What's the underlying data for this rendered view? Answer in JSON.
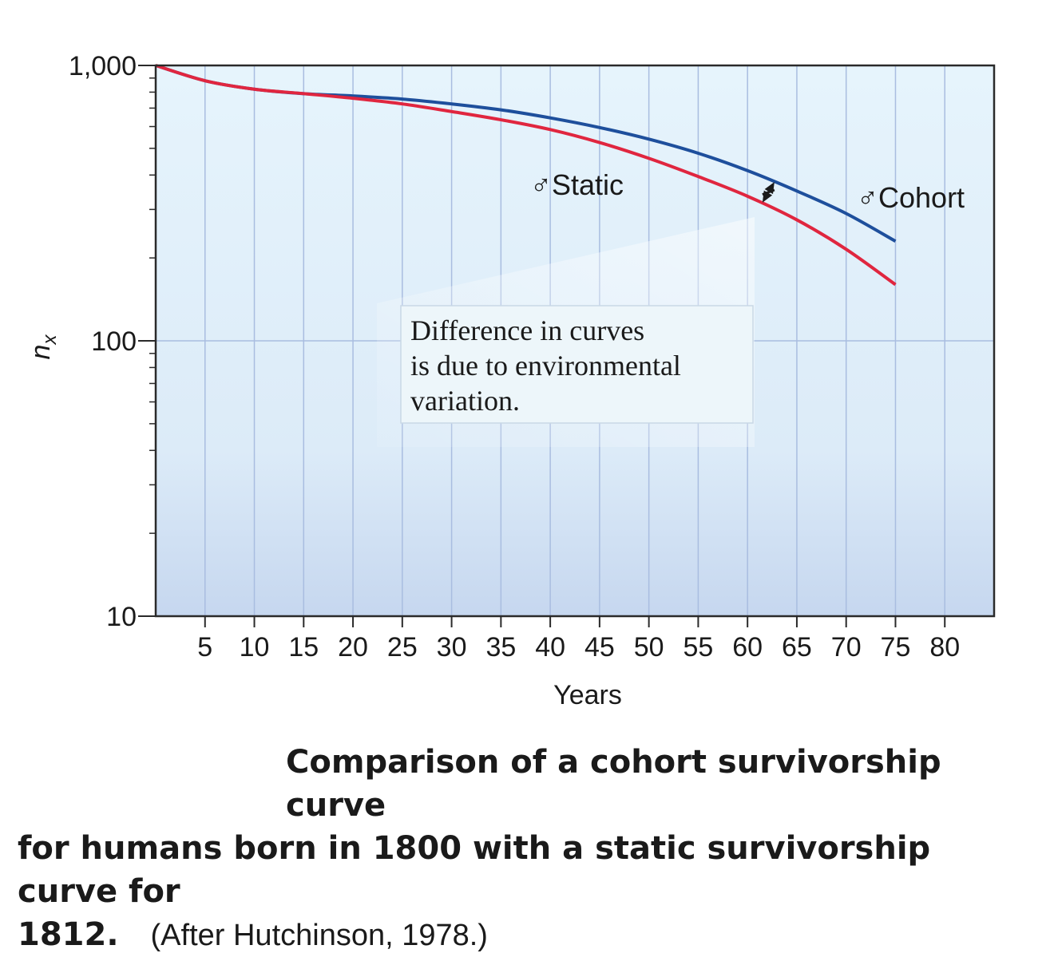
{
  "chart_data": {
    "type": "line",
    "xlabel": "Years",
    "ylabel": "n",
    "ylabel_sub": "x",
    "yscale": "log",
    "xlim": [
      0,
      85
    ],
    "ylim": [
      10,
      1000
    ],
    "x_ticks": [
      5,
      10,
      15,
      20,
      25,
      30,
      35,
      40,
      45,
      50,
      55,
      60,
      65,
      70,
      75,
      80
    ],
    "x_tick_labels": [
      "5",
      "10",
      "15",
      "20",
      "25",
      "30",
      "35",
      "40",
      "45",
      "50",
      "55",
      "60",
      "65",
      "70",
      "75",
      "80"
    ],
    "y_ticks": [
      10,
      100,
      1000
    ],
    "y_tick_labels": [
      "10",
      "100",
      "1,000"
    ],
    "grid": true,
    "series": [
      {
        "name": "Cohort",
        "symbol": "♂",
        "color": "#1e4f9c",
        "x": [
          0,
          5,
          10,
          15,
          20,
          25,
          30,
          35,
          40,
          45,
          50,
          55,
          60,
          65,
          70,
          75
        ],
        "y": [
          1000,
          880,
          820,
          790,
          775,
          755,
          725,
          690,
          645,
          595,
          540,
          480,
          415,
          350,
          290,
          230
        ]
      },
      {
        "name": "Static",
        "symbol": "♂",
        "color": "#e0263f",
        "x": [
          0,
          5,
          10,
          15,
          20,
          25,
          30,
          35,
          40,
          45,
          50,
          55,
          60,
          65,
          70,
          75
        ],
        "y": [
          1000,
          880,
          820,
          790,
          760,
          725,
          680,
          635,
          585,
          525,
          460,
          395,
          335,
          275,
          215,
          160
        ]
      }
    ],
    "annotation": {
      "lines": [
        "Difference in curves",
        "is due to environmental",
        "variation."
      ],
      "arrow_at_x": 62
    }
  },
  "caption": {
    "main": "Comparison of a cohort survivorship curve",
    "main2": "for humans born in 1800 with a static survivorship curve for",
    "main3": "1812.",
    "credit": "(After Hutchinson, 1978.)"
  }
}
